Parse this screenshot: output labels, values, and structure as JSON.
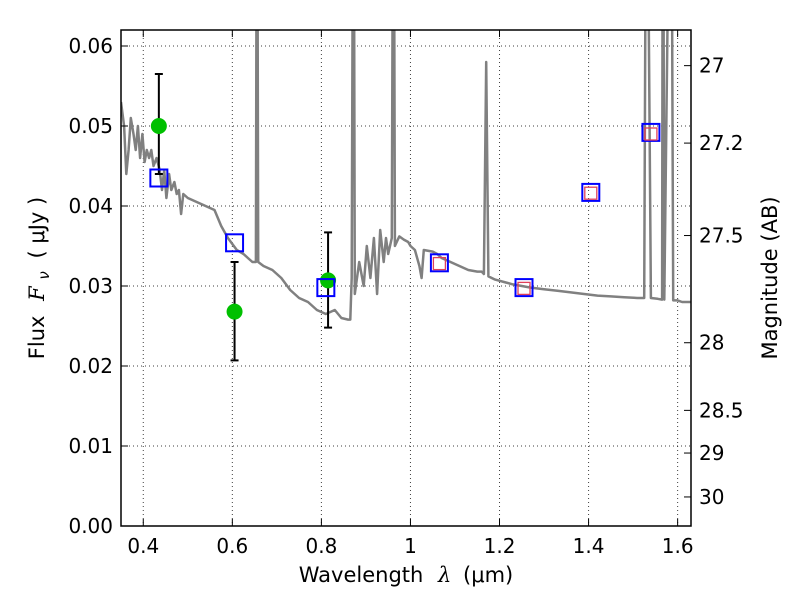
{
  "chart_data": {
    "type": "scatter",
    "x_axis": {
      "label_prefix": "Wavelength",
      "label_symbol": "λ",
      "label_unit": "(μm)",
      "range": [
        0.35,
        1.63
      ],
      "ticks": [
        0.4,
        0.6,
        0.8,
        1.0,
        1.2,
        1.4,
        1.6
      ],
      "tick_labels": [
        "0.4",
        "0.6",
        "0.8",
        "1",
        "1.2",
        "1.4",
        "1.6"
      ]
    },
    "y_axis": {
      "label_prefix": "Flux",
      "label_symbol": "F",
      "label_subscript": "ν",
      "label_unit": "( μJy )",
      "range": [
        0.0,
        0.062
      ],
      "ticks": [
        0.0,
        0.01,
        0.02,
        0.03,
        0.04,
        0.05,
        0.06
      ],
      "tick_labels": [
        "0.00",
        "0.01",
        "0.02",
        "0.03",
        "0.04",
        "0.05",
        "0.06"
      ]
    },
    "y2_axis": {
      "label": "Magnitude (AB)",
      "ticks": [
        27,
        27.2,
        27.5,
        28,
        28.5,
        29,
        30
      ],
      "tick_labels": [
        "27",
        "27.2",
        "27.5",
        "28",
        "28.5",
        "29",
        "30"
      ]
    },
    "grid": true,
    "series": [
      {
        "kind": "line",
        "color": "#808080",
        "points": [
          [
            0.35,
            0.053
          ],
          [
            0.357,
            0.05
          ],
          [
            0.362,
            0.044
          ],
          [
            0.367,
            0.047
          ],
          [
            0.372,
            0.051
          ],
          [
            0.378,
            0.049
          ],
          [
            0.383,
            0.047
          ],
          [
            0.388,
            0.05
          ],
          [
            0.393,
            0.046
          ],
          [
            0.398,
            0.049
          ],
          [
            0.403,
            0.0455
          ],
          [
            0.408,
            0.047
          ],
          [
            0.413,
            0.046
          ],
          [
            0.418,
            0.047
          ],
          [
            0.423,
            0.045
          ],
          [
            0.43,
            0.046
          ],
          [
            0.437,
            0.0445
          ],
          [
            0.442,
            0.042
          ],
          [
            0.447,
            0.0445
          ],
          [
            0.452,
            0.041
          ],
          [
            0.458,
            0.044
          ],
          [
            0.463,
            0.042
          ],
          [
            0.47,
            0.043
          ],
          [
            0.475,
            0.0415
          ],
          [
            0.48,
            0.042
          ],
          [
            0.485,
            0.039
          ],
          [
            0.49,
            0.0415
          ],
          [
            0.5,
            0.041
          ],
          [
            0.52,
            0.0405
          ],
          [
            0.54,
            0.04
          ],
          [
            0.56,
            0.0395
          ],
          [
            0.575,
            0.0375
          ],
          [
            0.59,
            0.036
          ],
          [
            0.61,
            0.0345
          ],
          [
            0.625,
            0.034
          ],
          [
            0.635,
            0.0335
          ],
          [
            0.645,
            0.033
          ],
          [
            0.653,
            0.033
          ],
          [
            0.6555,
            0.1
          ],
          [
            0.658,
            0.033
          ],
          [
            0.67,
            0.0325
          ],
          [
            0.69,
            0.032
          ],
          [
            0.71,
            0.031
          ],
          [
            0.73,
            0.0295
          ],
          [
            0.75,
            0.0285
          ],
          [
            0.77,
            0.028
          ],
          [
            0.79,
            0.027
          ],
          [
            0.81,
            0.0265
          ],
          [
            0.83,
            0.027
          ],
          [
            0.845,
            0.026
          ],
          [
            0.86,
            0.0258
          ],
          [
            0.865,
            0.0258
          ],
          [
            0.868,
            0.031
          ],
          [
            0.872,
            0.1
          ],
          [
            0.875,
            0.029
          ],
          [
            0.885,
            0.033
          ],
          [
            0.895,
            0.03
          ],
          [
            0.902,
            0.035
          ],
          [
            0.91,
            0.031
          ],
          [
            0.918,
            0.036
          ],
          [
            0.925,
            0.029
          ],
          [
            0.932,
            0.037
          ],
          [
            0.94,
            0.033
          ],
          [
            0.945,
            0.036
          ],
          [
            0.95,
            0.034
          ],
          [
            0.958,
            0.036
          ],
          [
            0.962,
            0.1
          ],
          [
            0.965,
            0.035
          ],
          [
            0.975,
            0.0362
          ],
          [
            0.985,
            0.0358
          ],
          [
            0.995,
            0.0355
          ],
          [
            1.0,
            0.035
          ],
          [
            1.01,
            0.0345
          ],
          [
            1.02,
            0.0325
          ],
          [
            1.025,
            0.031
          ],
          [
            1.03,
            0.0345
          ],
          [
            1.05,
            0.0343
          ],
          [
            1.06,
            0.034
          ],
          [
            1.07,
            0.0335
          ],
          [
            1.09,
            0.033
          ],
          [
            1.11,
            0.0325
          ],
          [
            1.13,
            0.032
          ],
          [
            1.15,
            0.0318
          ],
          [
            1.16,
            0.0318
          ],
          [
            1.165,
            0.0315
          ],
          [
            1.17,
            0.058
          ],
          [
            1.175,
            0.0312
          ],
          [
            1.19,
            0.0308
          ],
          [
            1.21,
            0.0305
          ],
          [
            1.23,
            0.0302
          ],
          [
            1.25,
            0.03
          ],
          [
            1.27,
            0.0298
          ],
          [
            1.3,
            0.0296
          ],
          [
            1.33,
            0.0294
          ],
          [
            1.36,
            0.0292
          ],
          [
            1.39,
            0.029
          ],
          [
            1.42,
            0.0288
          ],
          [
            1.45,
            0.0287
          ],
          [
            1.48,
            0.0286
          ],
          [
            1.51,
            0.0285
          ],
          [
            1.525,
            0.0285
          ],
          [
            1.53,
            0.1
          ],
          [
            1.54,
            0.0285
          ],
          [
            1.555,
            0.0284
          ],
          [
            1.565,
            0.0283
          ],
          [
            1.567,
            0.1
          ],
          [
            1.57,
            0.0283
          ],
          [
            1.585,
            0.1
          ],
          [
            1.59,
            0.0282
          ],
          [
            1.6,
            0.0282
          ],
          [
            1.61,
            0.028
          ],
          [
            1.63,
            0.028
          ]
        ]
      },
      {
        "kind": "points",
        "marker": "filled-circle",
        "color": "#00c000",
        "points": [
          {
            "x": 0.435,
            "y": 0.05,
            "ylo": 0.044,
            "yhi": 0.0565
          },
          {
            "x": 0.605,
            "y": 0.0268,
            "ylo": 0.0207,
            "yhi": 0.033
          },
          {
            "x": 0.815,
            "y": 0.0307,
            "ylo": 0.0248,
            "yhi": 0.0367
          }
        ]
      },
      {
        "kind": "points",
        "marker": "open-square",
        "color": "#0000ff",
        "points": [
          {
            "x": 0.435,
            "y": 0.0435
          },
          {
            "x": 0.605,
            "y": 0.0354
          },
          {
            "x": 0.81,
            "y": 0.0298
          },
          {
            "x": 1.065,
            "y": 0.0329
          },
          {
            "x": 1.255,
            "y": 0.0298
          },
          {
            "x": 1.405,
            "y": 0.0417
          },
          {
            "x": 1.54,
            "y": 0.0492
          }
        ]
      },
      {
        "kind": "points",
        "marker": "open-square-small",
        "color": "#e0405a",
        "points": [
          {
            "x": 1.065,
            "y": 0.0328
          },
          {
            "x": 1.255,
            "y": 0.0297
          },
          {
            "x": 1.405,
            "y": 0.0416
          },
          {
            "x": 1.54,
            "y": 0.049
          }
        ]
      }
    ]
  }
}
